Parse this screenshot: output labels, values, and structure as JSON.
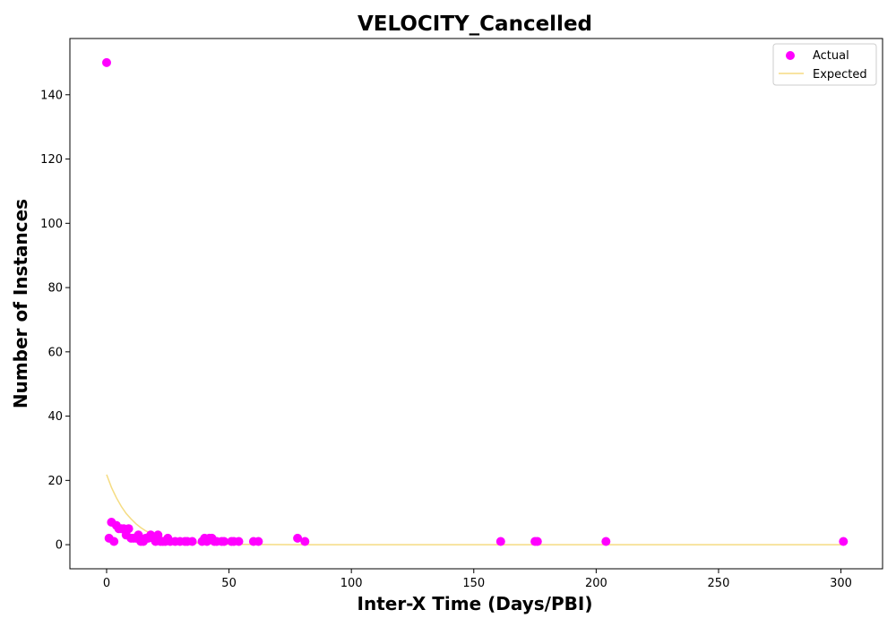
{
  "chart_data": {
    "type": "scatter",
    "title": "VELOCITY_Cancelled",
    "xlabel": "Inter-X Time (Days/PBI)",
    "ylabel": "Number of Instances",
    "xlim": [
      -15,
      317
    ],
    "ylim": [
      -7.5,
      157.5
    ],
    "x_ticks": [
      0,
      50,
      100,
      150,
      200,
      250,
      300
    ],
    "y_ticks": [
      0,
      20,
      40,
      60,
      80,
      100,
      120,
      140
    ],
    "grid": false,
    "legend_position": "top-right",
    "series": [
      {
        "name": "Actual",
        "kind": "scatter",
        "color": "#ff00ff",
        "points": [
          [
            0,
            150
          ],
          [
            1,
            2
          ],
          [
            2,
            7
          ],
          [
            3,
            1
          ],
          [
            4,
            6
          ],
          [
            5,
            5
          ],
          [
            6,
            5
          ],
          [
            7,
            5
          ],
          [
            8,
            3
          ],
          [
            9,
            5
          ],
          [
            10,
            2
          ],
          [
            11,
            2
          ],
          [
            12,
            2
          ],
          [
            13,
            3
          ],
          [
            14,
            1
          ],
          [
            15,
            1
          ],
          [
            16,
            2
          ],
          [
            17,
            2
          ],
          [
            18,
            3
          ],
          [
            19,
            2
          ],
          [
            20,
            1
          ],
          [
            21,
            3
          ],
          [
            22,
            1
          ],
          [
            23,
            1
          ],
          [
            24,
            1
          ],
          [
            25,
            2
          ],
          [
            26,
            1
          ],
          [
            28,
            1
          ],
          [
            30,
            1
          ],
          [
            32,
            1
          ],
          [
            33,
            1
          ],
          [
            35,
            1
          ],
          [
            39,
            1
          ],
          [
            40,
            2
          ],
          [
            41,
            1
          ],
          [
            42,
            2
          ],
          [
            43,
            2
          ],
          [
            44,
            1
          ],
          [
            45,
            1
          ],
          [
            47,
            1
          ],
          [
            48,
            1
          ],
          [
            51,
            1
          ],
          [
            52,
            1
          ],
          [
            54,
            1
          ],
          [
            60,
            1
          ],
          [
            62,
            1
          ],
          [
            78,
            2
          ],
          [
            81,
            1
          ],
          [
            161,
            1
          ],
          [
            175,
            1
          ],
          [
            176,
            1
          ],
          [
            204,
            1
          ],
          [
            301,
            1
          ]
        ]
      },
      {
        "name": "Expected",
        "kind": "line",
        "color": "#f5dc82",
        "points": [
          [
            0,
            21.8
          ],
          [
            2,
            17.8
          ],
          [
            4,
            14.6
          ],
          [
            6,
            11.9
          ],
          [
            8,
            9.7
          ],
          [
            10,
            8.0
          ],
          [
            12,
            6.5
          ],
          [
            14,
            5.3
          ],
          [
            16,
            4.3
          ],
          [
            18,
            3.6
          ],
          [
            20,
            2.9
          ],
          [
            22,
            2.4
          ],
          [
            25,
            1.8
          ],
          [
            28,
            1.3
          ],
          [
            32,
            0.9
          ],
          [
            36,
            0.6
          ],
          [
            40,
            0.4
          ],
          [
            45,
            0.25
          ],
          [
            50,
            0.15
          ],
          [
            60,
            0.06
          ],
          [
            70,
            0.02
          ],
          [
            80,
            0.01
          ],
          [
            100,
            0
          ],
          [
            150,
            0
          ],
          [
            200,
            0
          ],
          [
            250,
            0
          ],
          [
            301,
            0
          ]
        ]
      }
    ]
  }
}
